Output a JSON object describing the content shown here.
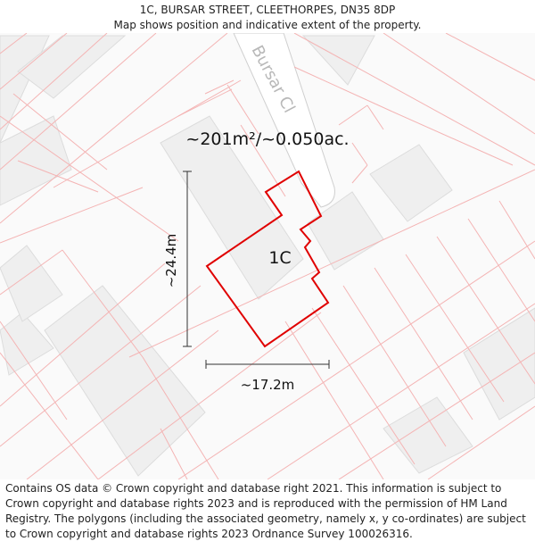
{
  "header": {
    "address": "1C, BURSAR STREET, CLEETHORPES, DN35 8DP",
    "subtitle": "Map shows position and indicative extent of the property."
  },
  "map": {
    "area_label": "~201m²/~0.050ac.",
    "plot_label": "1C",
    "height_label": "~24.4m",
    "width_label": "~17.2m",
    "street_label": "Bursar Cl",
    "colors": {
      "boundary": "#e00000",
      "parcel_lines": "#f4b4b4",
      "building_fill": "#efefef",
      "building_stroke": "#dcdcdc",
      "road": "#ffffff",
      "measure": "#333333"
    }
  },
  "footer": {
    "attribution": "Contains OS data © Crown copyright and database right 2021. This information is subject to Crown copyright and database rights 2023 and is reproduced with the permission of HM Land Registry. The polygons (including the associated geometry, namely x, y co-ordinates) are subject to Crown copyright and database rights 2023 Ordnance Survey 100026316."
  }
}
